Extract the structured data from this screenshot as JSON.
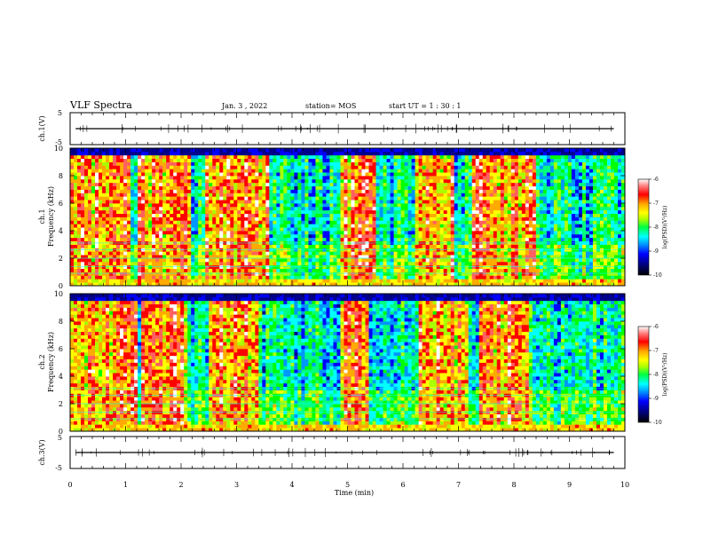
{
  "header": {
    "title": "VLF Spectra",
    "date": "Jan. 3 , 2022",
    "station": "station= MOS",
    "start": "start UT = 1 : 30 : 1"
  },
  "colors": {
    "palette": [
      "#000000",
      "#00008b",
      "#0000ff",
      "#0096ff",
      "#00ffff",
      "#00ff80",
      "#00ff00",
      "#aaff00",
      "#ffff00",
      "#ffaa00",
      "#ff0000",
      "#ff6060",
      "#ffffff"
    ]
  },
  "chart_data": [
    {
      "type": "line",
      "name": "ch1-waveform",
      "ylabel": "ch.1(V)",
      "ylim": [
        -5,
        5
      ],
      "y_ticks": [
        "5",
        "-5"
      ],
      "xlim": [
        0,
        10
      ],
      "baseline_value": 0,
      "grid": false
    },
    {
      "type": "heatmap",
      "name": "ch1-spectrogram",
      "ylabel": [
        "ch.1",
        "Frequency (kHz)"
      ],
      "ylim": [
        0,
        10
      ],
      "y_ticks": [
        "10",
        "8",
        "6",
        "4",
        "2",
        "0"
      ],
      "xlim": [
        0,
        10
      ],
      "colorbar": {
        "label": "log(PSD)(V²/Hz)",
        "range": [
          -10,
          -6
        ],
        "ticks": [
          "-6",
          "-7",
          "-8",
          "-9",
          "-10"
        ]
      },
      "active_intervals_min": [
        [
          0.0,
          1.1
        ],
        [
          1.25,
          2.15
        ],
        [
          2.45,
          3.6
        ],
        [
          4.9,
          5.5
        ],
        [
          6.2,
          6.9
        ],
        [
          7.25,
          8.4
        ]
      ],
      "band_edges_khz": [
        0.8,
        9.6
      ]
    },
    {
      "type": "heatmap",
      "name": "ch2-spectrogram",
      "ylabel": [
        "ch.2",
        "Frequency (kHz)"
      ],
      "ylim": [
        0,
        10
      ],
      "y_ticks": [
        "10",
        "8",
        "6",
        "4",
        "2",
        "0"
      ],
      "xlim": [
        0,
        10
      ],
      "colorbar": {
        "label": "log(PSD)(V²/Hz)",
        "range": [
          -10,
          -6
        ],
        "ticks": [
          "-6",
          "-7",
          "-8",
          "-9",
          "-10"
        ]
      },
      "active_intervals_min": [
        [
          0.0,
          1.2
        ],
        [
          1.3,
          2.1
        ],
        [
          2.5,
          3.4
        ],
        [
          4.9,
          5.4
        ],
        [
          6.3,
          7.2
        ],
        [
          7.4,
          8.3
        ]
      ],
      "band_edges_khz": [
        0.8,
        9.6
      ]
    },
    {
      "type": "line",
      "name": "ch3-waveform",
      "ylabel": "ch.3(V)",
      "ylim": [
        -5,
        5
      ],
      "y_ticks": [
        "5",
        "-5"
      ],
      "xlim": [
        0,
        10
      ],
      "baseline_value": 0,
      "grid": false
    }
  ],
  "x_axis": {
    "label": "Time (min)",
    "ticks": [
      "0",
      "1",
      "2",
      "3",
      "4",
      "5",
      "6",
      "7",
      "8",
      "9",
      "10"
    ],
    "range": [
      0,
      10
    ]
  }
}
